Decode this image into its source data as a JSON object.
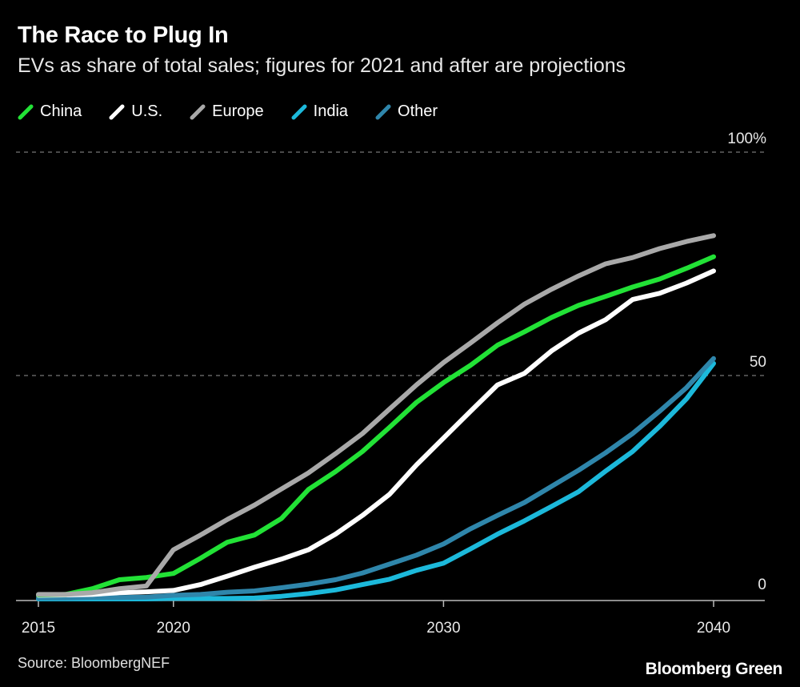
{
  "title": "The Race to Plug In",
  "subtitle": "EVs as share of total sales; figures for 2021 and after are projections",
  "source": "Source: BloombergNEF",
  "brand": "Bloomberg Green",
  "chart_data": {
    "type": "line",
    "title": "The Race to Plug In",
    "subtitle": "EVs as share of total sales; figures for 2021 and after are projections",
    "x": [
      2015,
      2016,
      2017,
      2018,
      2019,
      2020,
      2021,
      2022,
      2023,
      2024,
      2025,
      2026,
      2027,
      2028,
      2029,
      2030,
      2031,
      2032,
      2033,
      2034,
      2035,
      2036,
      2037,
      2038,
      2039,
      2040
    ],
    "xlim": [
      2015,
      2040
    ],
    "x_ticks": [
      "2015",
      "2020",
      "2030",
      "2040"
    ],
    "ylim": [
      0,
      100
    ],
    "y_ticks": [
      "0",
      "50",
      "100%"
    ],
    "y_tick_values": [
      0,
      50,
      100
    ],
    "grid": "dashed horizontal at 50 and 100",
    "legend_position": "top-left",
    "series": [
      {
        "name": "China",
        "color": "#22e236",
        "values": [
          0.9,
          1,
          2.3,
          4.3,
          4.8,
          5.7,
          9.1,
          12.7,
          14.3,
          18,
          24.5,
          28.5,
          33,
          38.4,
          44,
          48.4,
          52.3,
          56.8,
          59.8,
          63,
          65.7,
          67.7,
          69.8,
          71.6,
          74,
          76.6
        ]
      },
      {
        "name": "U.S.",
        "color": "#ffffff",
        "values": [
          0.8,
          0.9,
          1,
          1.4,
          1.6,
          1.9,
          3.2,
          5.1,
          7.1,
          8.9,
          11,
          14.5,
          18.7,
          23.4,
          30,
          36,
          42,
          47.9,
          50.5,
          55.5,
          59.5,
          62.5,
          67,
          68.4,
          70.7,
          73.4
        ]
      },
      {
        "name": "Europe",
        "color": "#a9a9a9",
        "values": [
          1,
          1,
          1.4,
          2.3,
          2.9,
          11,
          14.3,
          17.8,
          21,
          24.6,
          28.2,
          32.5,
          37,
          42.5,
          47.9,
          52.9,
          57.3,
          61.8,
          66,
          69.3,
          72.3,
          75,
          76.4,
          78.4,
          80,
          81.3
        ]
      },
      {
        "name": "India",
        "color": "#1cb9db",
        "values": [
          0,
          0,
          0,
          0,
          0,
          0.1,
          0.1,
          0.1,
          0.2,
          0.6,
          1.2,
          2,
          3.2,
          4.4,
          6.4,
          8,
          11.2,
          14.5,
          17.5,
          20.7,
          24,
          28.6,
          33,
          38.6,
          44.8,
          52.7
        ]
      },
      {
        "name": "Other",
        "color": "#2f86ab",
        "values": [
          0.2,
          0.2,
          0.3,
          0.3,
          0.4,
          0.8,
          1,
          1.5,
          1.8,
          2.5,
          3.3,
          4.3,
          5.8,
          7.8,
          9.8,
          12.3,
          15.7,
          18.7,
          21.6,
          25.2,
          28.8,
          32.7,
          37,
          42,
          47.3,
          53.8
        ]
      }
    ]
  }
}
